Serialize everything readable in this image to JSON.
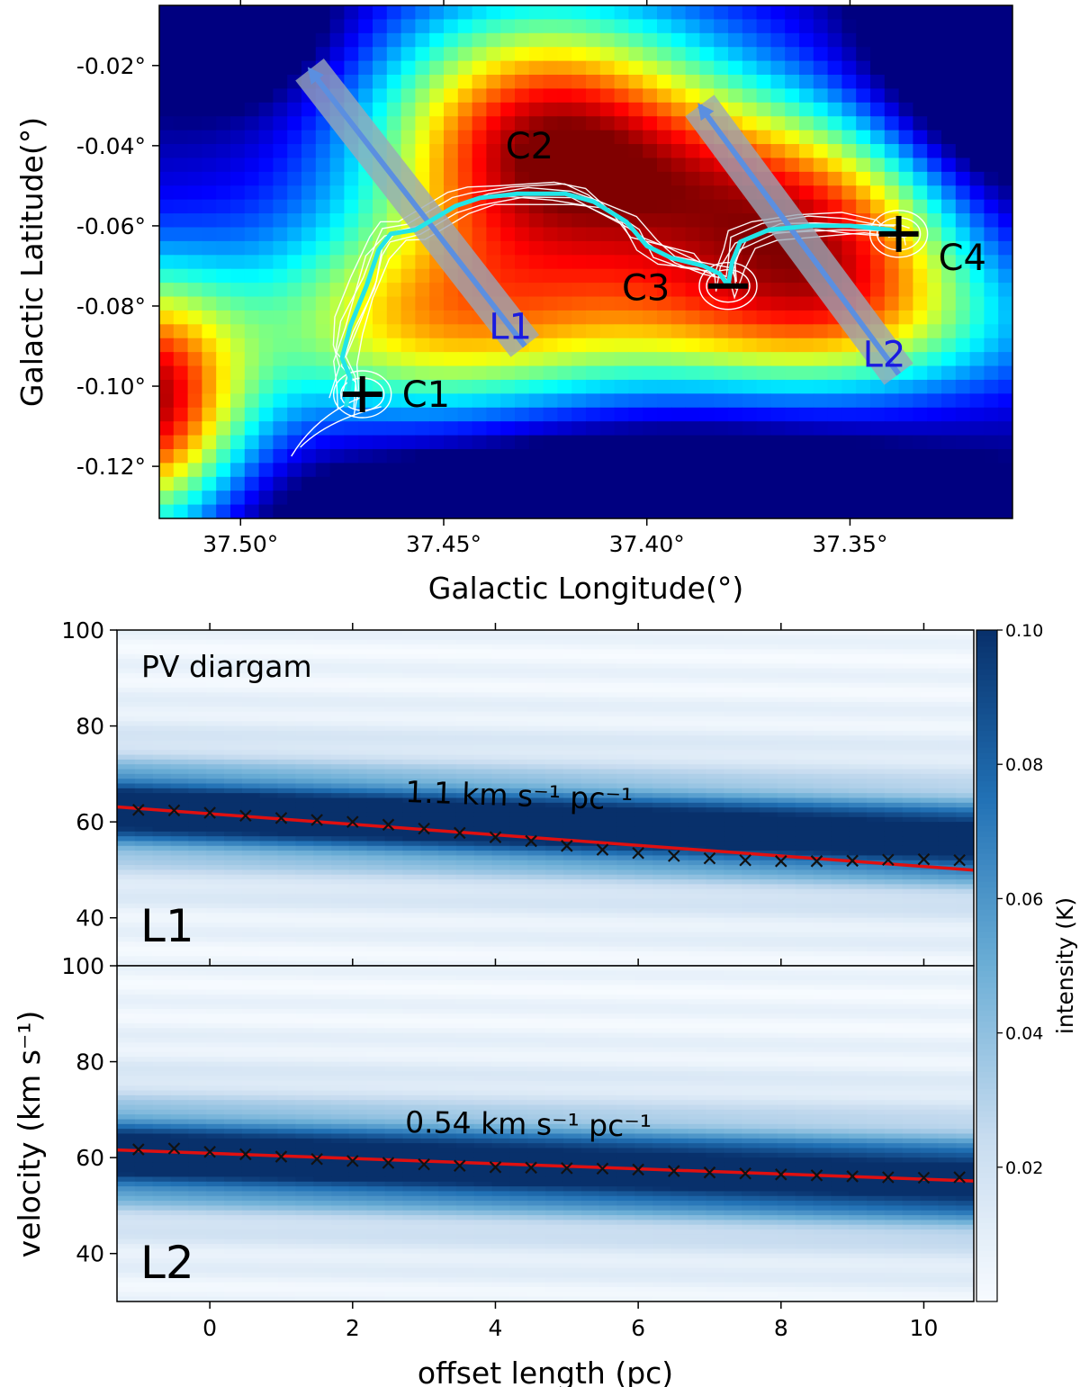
{
  "chart_data": [
    {
      "type": "heatmap",
      "xlabel": "Galactic Longitude(°)",
      "ylabel": "Galactic Latitude(°)",
      "x_reversed": true,
      "xlim": [
        37.52,
        37.31
      ],
      "ylim": [
        -0.133,
        -0.005
      ],
      "x_ticks": [
        37.5,
        37.45,
        37.4,
        37.35
      ],
      "x_tick_labels": [
        "37.50°",
        "37.45°",
        "37.40°",
        "37.35°"
      ],
      "y_ticks": [
        -0.02,
        -0.04,
        -0.06,
        -0.08,
        -0.1,
        -0.12
      ],
      "y_tick_labels": [
        "-0.02°",
        "-0.04°",
        "-0.06°",
        "-0.08°",
        "-0.10°",
        "-0.12°"
      ],
      "colormap": "jet",
      "grid": false,
      "clumps": [
        {
          "name": "C1",
          "l": 37.47,
          "b": -0.102
        },
        {
          "name": "C2",
          "l": 37.437,
          "b": -0.04
        },
        {
          "name": "C3",
          "l": 37.38,
          "b": -0.075
        },
        {
          "name": "C4",
          "l": 37.338,
          "b": -0.062
        }
      ],
      "cuts": [
        {
          "name": "L1",
          "start": [
            37.43,
            -0.09
          ],
          "end": [
            37.483,
            -0.021
          ]
        },
        {
          "name": "L2",
          "start": [
            37.338,
            -0.097
          ],
          "end": [
            37.387,
            -0.03
          ]
        }
      ],
      "filament_spine": [
        [
          37.474,
          -0.105
        ],
        [
          37.473,
          -0.098
        ],
        [
          37.475,
          -0.093
        ],
        [
          37.473,
          -0.085
        ],
        [
          37.469,
          -0.075
        ],
        [
          37.466,
          -0.066
        ],
        [
          37.463,
          -0.062
        ],
        [
          37.457,
          -0.061
        ],
        [
          37.452,
          -0.058
        ],
        [
          37.447,
          -0.055
        ],
        [
          37.441,
          -0.053
        ],
        [
          37.432,
          -0.052
        ],
        [
          37.42,
          -0.052
        ],
        [
          37.413,
          -0.054
        ],
        [
          37.405,
          -0.059
        ],
        [
          37.4,
          -0.065
        ],
        [
          37.394,
          -0.068
        ],
        [
          37.386,
          -0.07
        ],
        [
          37.382,
          -0.072
        ],
        [
          37.38,
          -0.075
        ],
        [
          37.379,
          -0.069
        ],
        [
          37.377,
          -0.064
        ],
        [
          37.37,
          -0.061
        ],
        [
          37.36,
          -0.06
        ],
        [
          37.35,
          -0.06
        ],
        [
          37.34,
          -0.061
        ],
        [
          37.338,
          -0.062
        ]
      ],
      "colors": {
        "spine": "#22e5e8",
        "cut_band": "#9aa8b8",
        "cut_arrow": "#5b8fe0",
        "cut_label": "#1a1ae0",
        "contour": "#ffffff"
      }
    },
    {
      "type": "heatmap",
      "panel": "L1",
      "annotation": "PV diargam",
      "slope_label": "1.1 km s⁻¹ pc⁻¹",
      "xlim": [
        -1.3,
        10.7
      ],
      "ylim": [
        30,
        100
      ],
      "y_ticks": [
        40,
        60,
        80,
        100
      ],
      "x": [
        -1.0,
        -0.5,
        0.0,
        0.5,
        1.0,
        1.5,
        2.0,
        2.5,
        3.0,
        3.5,
        4.0,
        4.5,
        5.0,
        5.5,
        6.0,
        6.5,
        7.0,
        7.5,
        8.0,
        8.5,
        9.0,
        9.5,
        10.0,
        10.5
      ],
      "y": [
        62.5,
        62.4,
        61.9,
        61.3,
        60.8,
        60.4,
        60.0,
        59.4,
        58.6,
        57.7,
        56.8,
        56.0,
        55.0,
        54.2,
        53.5,
        52.9,
        52.4,
        52.0,
        51.8,
        51.8,
        51.9,
        52.1,
        52.2,
        52.0
      ],
      "fit": {
        "slope": -1.1,
        "intercept": 61.7
      },
      "emission": {
        "center": [
          62.0,
          -0.55
        ],
        "width": 9.0
      },
      "colors": {
        "fit": "#e01010",
        "marker": "#111111"
      }
    },
    {
      "type": "heatmap",
      "panel": "L2",
      "slope_label": "0.54 km s⁻¹ pc⁻¹",
      "xlabel": "offset length (pc)",
      "ylabel": "velocity (km s⁻¹)",
      "xlim": [
        -1.3,
        10.7
      ],
      "ylim": [
        30,
        100
      ],
      "x_ticks": [
        0,
        2,
        4,
        6,
        8,
        10
      ],
      "y_ticks": [
        40,
        60,
        80,
        100
      ],
      "x": [
        -1.0,
        -0.5,
        0.0,
        0.5,
        1.0,
        1.5,
        2.0,
        2.5,
        3.0,
        3.5,
        4.0,
        4.5,
        5.0,
        5.5,
        6.0,
        6.5,
        7.0,
        7.5,
        8.0,
        8.5,
        9.0,
        9.5,
        10.0,
        10.5
      ],
      "y": [
        61.7,
        61.9,
        61.2,
        60.7,
        60.2,
        59.7,
        59.3,
        58.9,
        58.6,
        58.3,
        58.0,
        57.9,
        57.8,
        57.7,
        57.5,
        57.2,
        56.9,
        56.7,
        56.5,
        56.3,
        56.1,
        55.9,
        55.8,
        55.9
      ],
      "fit": {
        "slope": -0.54,
        "intercept": 60.9
      },
      "emission": {
        "center": [
          60.0,
          -0.45
        ],
        "width": 9.5
      },
      "colors": {
        "fit": "#e01010",
        "marker": "#111111"
      }
    }
  ],
  "colorbar": {
    "label": "intensity (K)",
    "min": 0.0,
    "max": 0.1,
    "ticks": [
      0.02,
      0.04,
      0.06,
      0.08,
      0.1
    ],
    "tick_labels": [
      "0.02",
      "0.04",
      "0.06",
      "0.08",
      "0.10"
    ],
    "colormap": "Blues"
  }
}
